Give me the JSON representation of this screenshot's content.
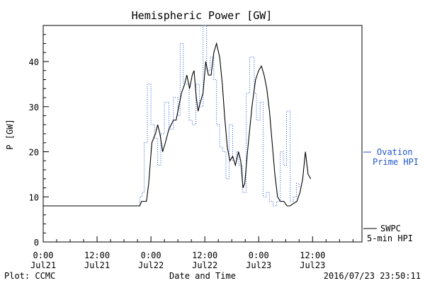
{
  "chart_data": {
    "type": "line",
    "title": "Hemispheric Power [GW]",
    "ylabel": "P [GW]",
    "xlabel": "Date and Time",
    "ylim": [
      0,
      48
    ],
    "yticks": [
      0,
      10,
      20,
      30,
      40
    ],
    "xlim_hours": [
      0,
      71
    ],
    "xticks": [
      {
        "hour": 0,
        "line1": "0:00",
        "line2": "Jul21"
      },
      {
        "hour": 12,
        "line1": "12:00",
        "line2": "Jul21"
      },
      {
        "hour": 24,
        "line1": "0:00",
        "line2": "Jul22"
      },
      {
        "hour": 36,
        "line1": "12:00",
        "line2": "Jul22"
      },
      {
        "hour": 48,
        "line1": "0:00",
        "line2": "Jul23"
      },
      {
        "hour": 60,
        "line1": "12:00",
        "line2": "Jul23"
      }
    ],
    "grid": false,
    "legend_placement": "right",
    "series": [
      {
        "id": "ovation",
        "legend_line1": "Ovation",
        "legend_line2": "Prime HPI",
        "color": "#2255cc",
        "style": "dotted-step",
        "points": [
          [
            0,
            8
          ],
          [
            21,
            8
          ],
          [
            21.5,
            10
          ],
          [
            22,
            11
          ],
          [
            22.5,
            22
          ],
          [
            23.2,
            35
          ],
          [
            24,
            26
          ],
          [
            24.8,
            23
          ],
          [
            25.5,
            17
          ],
          [
            26.2,
            24
          ],
          [
            27,
            31
          ],
          [
            28,
            25
          ],
          [
            29,
            32
          ],
          [
            30,
            28
          ],
          [
            30.5,
            44
          ],
          [
            31.2,
            35
          ],
          [
            32,
            35
          ],
          [
            32.5,
            27
          ],
          [
            33.2,
            26
          ],
          [
            34,
            35
          ],
          [
            34.8,
            30
          ],
          [
            35.6,
            48
          ],
          [
            36.4,
            38
          ],
          [
            37.2,
            41
          ],
          [
            38,
            36
          ],
          [
            38.6,
            26
          ],
          [
            39.3,
            21
          ],
          [
            40,
            20
          ],
          [
            40.7,
            14
          ],
          [
            41.4,
            26
          ],
          [
            42.2,
            18
          ],
          [
            43,
            20
          ],
          [
            43.6,
            17
          ],
          [
            44.4,
            11
          ],
          [
            45.2,
            33
          ],
          [
            46,
            41
          ],
          [
            47,
            33
          ],
          [
            47.5,
            27
          ],
          [
            48.3,
            31
          ],
          [
            49,
            10
          ],
          [
            49.7,
            11
          ],
          [
            50.4,
            9
          ],
          [
            51.2,
            8
          ],
          [
            52,
            9
          ],
          [
            52.8,
            20
          ],
          [
            53.5,
            17
          ],
          [
            54.2,
            29
          ],
          [
            55,
            9
          ],
          [
            55.7,
            10
          ],
          [
            56.4,
            13
          ],
          [
            57,
            12
          ]
        ]
      },
      {
        "id": "swpc",
        "legend_line1": "SWPC",
        "legend_line2": "5-min HPI",
        "color": "#000000",
        "style": "solid",
        "points": [
          [
            0,
            8
          ],
          [
            21.5,
            8
          ],
          [
            21.9,
            9
          ],
          [
            23,
            9
          ],
          [
            23.5,
            13
          ],
          [
            24.2,
            22
          ],
          [
            25,
            24
          ],
          [
            25.5,
            26
          ],
          [
            26,
            24
          ],
          [
            26.6,
            20
          ],
          [
            27.2,
            22
          ],
          [
            28,
            25
          ],
          [
            29,
            27
          ],
          [
            29.6,
            27
          ],
          [
            30.2,
            30
          ],
          [
            30.8,
            33
          ],
          [
            31.5,
            35
          ],
          [
            32,
            37
          ],
          [
            32.6,
            34
          ],
          [
            33.2,
            37
          ],
          [
            33.6,
            38
          ],
          [
            34.1,
            32
          ],
          [
            34.5,
            29
          ],
          [
            35,
            31
          ],
          [
            35.6,
            33
          ],
          [
            36.2,
            40
          ],
          [
            36.8,
            37
          ],
          [
            37.4,
            37
          ],
          [
            38,
            42
          ],
          [
            38.6,
            44
          ],
          [
            39.3,
            41
          ],
          [
            39.9,
            35
          ],
          [
            40.4,
            28
          ],
          [
            41,
            21
          ],
          [
            41.6,
            18
          ],
          [
            42.2,
            19
          ],
          [
            42.8,
            17
          ],
          [
            43.5,
            20
          ],
          [
            44,
            18
          ],
          [
            44.5,
            12
          ],
          [
            44.9,
            13
          ],
          [
            45.5,
            20
          ],
          [
            46.5,
            30
          ],
          [
            47.3,
            36
          ],
          [
            48,
            38
          ],
          [
            48.6,
            39
          ],
          [
            49.2,
            37
          ],
          [
            49.8,
            34
          ],
          [
            50.4,
            29
          ],
          [
            51,
            22
          ],
          [
            51.6,
            15
          ],
          [
            52.2,
            10
          ],
          [
            52.8,
            9
          ],
          [
            53.6,
            9
          ],
          [
            54.3,
            8
          ],
          [
            55,
            8
          ],
          [
            55.7,
            8.5
          ],
          [
            56.5,
            9
          ],
          [
            57.2,
            11
          ],
          [
            57.8,
            14
          ],
          [
            58.4,
            20
          ],
          [
            59,
            15
          ],
          [
            59.6,
            14
          ]
        ]
      }
    ],
    "footer_left": "Plot: CCMC",
    "footer_right": "2016/07/23 23:50:11"
  }
}
